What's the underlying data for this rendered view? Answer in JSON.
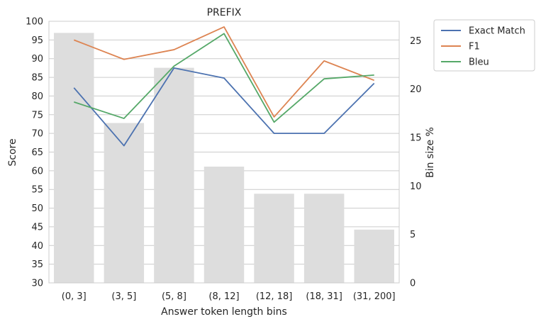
{
  "chart_data": {
    "type": "bar+line",
    "title": "PREFIX",
    "xlabel": "Answer token length bins",
    "ylabel": "Score",
    "y2label": "Bin size %",
    "categories": [
      "(0, 3]",
      "(3, 5]",
      "(5, 8]",
      "(8, 12]",
      "(12, 18]",
      "(18, 31]",
      "(31, 200]"
    ],
    "ylim": [
      30,
      100
    ],
    "yticks": [
      "30",
      "35",
      "40",
      "45",
      "50",
      "55",
      "60",
      "65",
      "70",
      "75",
      "80",
      "85",
      "90",
      "95",
      "100"
    ],
    "y2lim": [
      0,
      27
    ],
    "y2ticks": [
      "0",
      "5",
      "10",
      "15",
      "20",
      "25"
    ],
    "grid": true,
    "legend_position": "outside-top-right",
    "bars": {
      "axis": "right",
      "color": "#dddddd",
      "values": [
        25.8,
        16.5,
        22.2,
        12.0,
        9.2,
        9.2,
        5.5
      ]
    },
    "series": [
      {
        "name": "Exact Match",
        "color": "#4c72b0",
        "values": [
          82.2,
          66.7,
          87.5,
          84.8,
          70.0,
          70.0,
          83.4
        ]
      },
      {
        "name": "F1",
        "color": "#dd8452",
        "values": [
          95.0,
          89.8,
          92.4,
          98.5,
          74.4,
          89.4,
          84.2
        ]
      },
      {
        "name": "Bleu",
        "color": "#55a868",
        "values": [
          78.4,
          74.0,
          88.0,
          96.7,
          73.0,
          84.6,
          85.6
        ]
      }
    ]
  }
}
